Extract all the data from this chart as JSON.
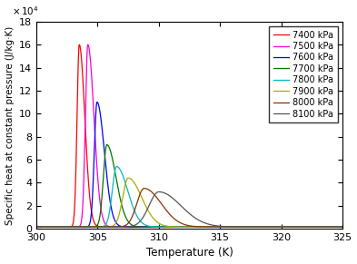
{
  "pressures": [
    7400,
    7500,
    7600,
    7700,
    7800,
    7900,
    8000,
    8100
  ],
  "colors": [
    "#ff0000",
    "#ff00cc",
    "#0000ff",
    "#007700",
    "#00bbbb",
    "#aaaa00",
    "#883300",
    "#555555"
  ],
  "labels": [
    "7400 kPa",
    "7500 kPa",
    "7600 kPa",
    "7700 kPa",
    "7800 kPa",
    "7900 kPa",
    "8000 kPa",
    "8100 kPa"
  ],
  "peak_temps": [
    303.5,
    304.2,
    304.95,
    305.75,
    306.55,
    307.5,
    308.8,
    310.0
  ],
  "peak_heights": [
    160000,
    160000,
    110000,
    73000,
    54000,
    44000,
    35000,
    32000
  ],
  "left_widths": [
    0.18,
    0.2,
    0.22,
    0.28,
    0.35,
    0.45,
    0.6,
    0.8
  ],
  "right_widths": [
    0.45,
    0.5,
    0.6,
    0.75,
    0.9,
    1.1,
    1.4,
    1.8
  ],
  "baseline": 1500,
  "xlim": [
    300,
    325
  ],
  "ylim": [
    0,
    180000
  ],
  "yticks": [
    0,
    20000,
    40000,
    60000,
    80000,
    100000,
    120000,
    140000,
    160000,
    180000
  ],
  "xticks": [
    300,
    305,
    310,
    315,
    320,
    325
  ],
  "xlabel": "Temperature (K)",
  "ylabel": "Specific heat at constant pressure (J/kg·K)",
  "legend_loc": "upper right",
  "figsize": [
    3.93,
    2.91
  ],
  "dpi": 100
}
